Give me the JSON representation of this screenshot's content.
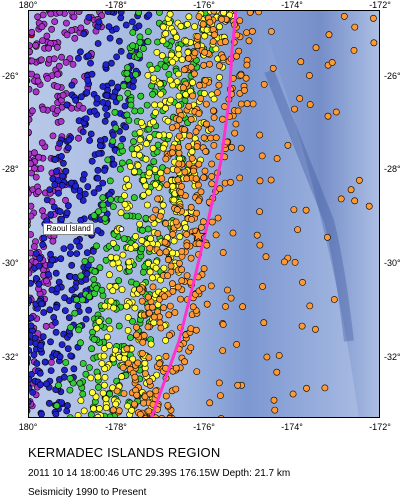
{
  "map": {
    "region_title": "KERMADEC ISLANDS REGION",
    "event_line": "2011 10 14 18:00:46 UTC 29.39S 176.15W Depth: 21.7 km",
    "seismicity_note": "Seismicity 1990 to Present",
    "place_label": "Raoul Island",
    "lon_ticks": [
      "180°",
      "-178°",
      "-176°",
      "-174°",
      "-172°"
    ],
    "lat_ticks": [
      "-26°",
      "-28°",
      "-30°",
      "-32°"
    ],
    "extent": {
      "lon_min": -180,
      "lon_max": -172,
      "lat_min": -33.3,
      "lat_max": -24.6
    },
    "raoul_island": {
      "lon": -177.9,
      "lat": -29.25
    },
    "epicenter": {
      "lon": -176.15,
      "lat": -29.39
    },
    "colors": {
      "ocean_deep": "#5c7fc4",
      "ocean_mid": "#8ea6d8",
      "ocean_light": "#c9d6ee",
      "plate_boundary": "#ff33cc",
      "depth_0_33": "#ff9933",
      "depth_33_70": "#ffff33",
      "depth_70_150": "#33cc33",
      "depth_150_300": "#2222cc",
      "depth_300_500": "#aa33cc",
      "depth_500_800": "#cc0000"
    }
  }
}
